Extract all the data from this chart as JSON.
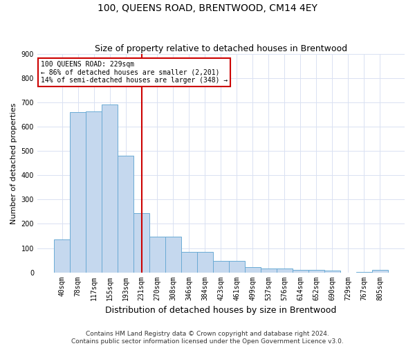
{
  "title": "100, QUEENS ROAD, BRENTWOOD, CM14 4EY",
  "subtitle": "Size of property relative to detached houses in Brentwood",
  "xlabel": "Distribution of detached houses by size in Brentwood",
  "ylabel": "Number of detached properties",
  "bar_labels": [
    "40sqm",
    "78sqm",
    "117sqm",
    "155sqm",
    "193sqm",
    "231sqm",
    "270sqm",
    "308sqm",
    "346sqm",
    "384sqm",
    "423sqm",
    "461sqm",
    "499sqm",
    "537sqm",
    "576sqm",
    "614sqm",
    "652sqm",
    "690sqm",
    "729sqm",
    "767sqm",
    "805sqm"
  ],
  "bar_values": [
    137,
    660,
    665,
    693,
    480,
    245,
    148,
    148,
    85,
    85,
    47,
    47,
    22,
    17,
    17,
    10,
    10,
    7,
    0,
    1,
    10
  ],
  "bar_color": "#c5d8ee",
  "bar_edgecolor": "#6aaad4",
  "vline_x_index": 5,
  "vline_color": "#cc0000",
  "ylim": [
    0,
    900
  ],
  "yticks": [
    0,
    100,
    200,
    300,
    400,
    500,
    600,
    700,
    800,
    900
  ],
  "annotation_text": "100 QUEENS ROAD: 229sqm\n← 86% of detached houses are smaller (2,201)\n14% of semi-detached houses are larger (348) →",
  "annotation_box_facecolor": "#ffffff",
  "annotation_box_edgecolor": "#cc0000",
  "footer1": "Contains HM Land Registry data © Crown copyright and database right 2024.",
  "footer2": "Contains public sector information licensed under the Open Government Licence v3.0.",
  "grid_color": "#d9e1f2",
  "background_color": "#ffffff",
  "title_fontsize": 10,
  "subtitle_fontsize": 9,
  "ylabel_fontsize": 8,
  "xlabel_fontsize": 9,
  "tick_fontsize": 7,
  "annotation_fontsize": 7,
  "footer_fontsize": 6.5
}
